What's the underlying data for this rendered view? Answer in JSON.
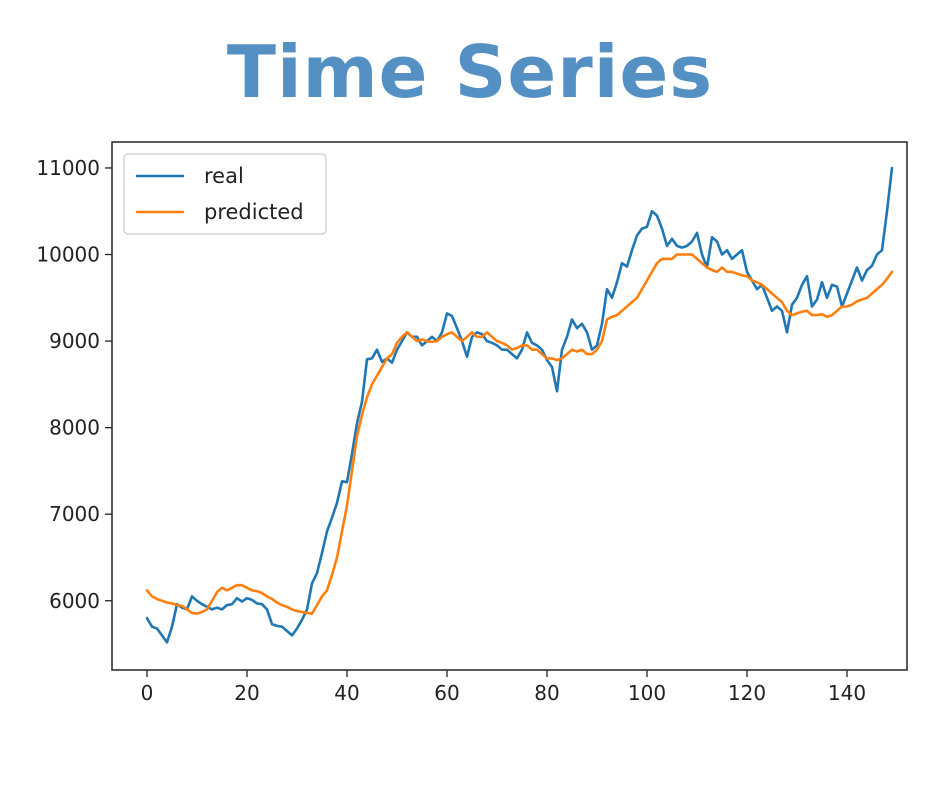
{
  "page": {
    "title": "Time Series"
  },
  "chart_data": {
    "type": "line",
    "title": "",
    "xlabel": "",
    "ylabel": "",
    "xlim": [
      -7,
      152
    ],
    "ylim": [
      5200,
      11300
    ],
    "xticks": [
      0,
      20,
      40,
      60,
      80,
      100,
      120,
      140
    ],
    "yticks": [
      6000,
      7000,
      8000,
      9000,
      10000,
      11000
    ],
    "grid": false,
    "legend_position": "top-left",
    "series": [
      {
        "name": "real",
        "color": "#1f77b4",
        "x": [
          0,
          1,
          2,
          3,
          4,
          5,
          6,
          7,
          8,
          9,
          10,
          11,
          12,
          13,
          14,
          15,
          16,
          17,
          18,
          19,
          20,
          21,
          22,
          23,
          24,
          25,
          26,
          27,
          28,
          29,
          30,
          31,
          32,
          33,
          34,
          35,
          36,
          37,
          38,
          39,
          40,
          41,
          42,
          43,
          44,
          45,
          46,
          47,
          48,
          49,
          50,
          51,
          52,
          53,
          54,
          55,
          56,
          57,
          58,
          59,
          60,
          61,
          62,
          63,
          64,
          65,
          66,
          67,
          68,
          69,
          70,
          71,
          72,
          73,
          74,
          75,
          76,
          77,
          78,
          79,
          80,
          81,
          82,
          83,
          84,
          85,
          86,
          87,
          88,
          89,
          90,
          91,
          92,
          93,
          94,
          95,
          96,
          97,
          98,
          99,
          100,
          101,
          102,
          103,
          104,
          105,
          106,
          107,
          108,
          109,
          110,
          111,
          112,
          113,
          114,
          115,
          116,
          117,
          118,
          119,
          120,
          121,
          122,
          123,
          124,
          125,
          126,
          127,
          128,
          129,
          130,
          131,
          132,
          133,
          134,
          135,
          136,
          137,
          138,
          139,
          140,
          141,
          142,
          143,
          144,
          145,
          146,
          147,
          148,
          149
        ],
        "values": [
          5800,
          5700,
          5680,
          5600,
          5520,
          5700,
          5960,
          5920,
          5900,
          6050,
          6000,
          5960,
          5930,
          5900,
          5920,
          5900,
          5950,
          5960,
          6030,
          5990,
          6030,
          6010,
          5970,
          5960,
          5900,
          5730,
          5710,
          5700,
          5650,
          5600,
          5680,
          5780,
          5900,
          6200,
          6320,
          6550,
          6800,
          6960,
          7130,
          7380,
          7370,
          7700,
          8050,
          8300,
          8790,
          8800,
          8900,
          8760,
          8800,
          8750,
          8900,
          9000,
          9100,
          9050,
          9050,
          8950,
          9000,
          9050,
          9000,
          9100,
          9320,
          9290,
          9150,
          9000,
          8820,
          9050,
          9100,
          9080,
          9000,
          8980,
          8950,
          8900,
          8900,
          8850,
          8800,
          8900,
          9100,
          8980,
          8950,
          8900,
          8780,
          8700,
          8420,
          8900,
          9050,
          9250,
          9150,
          9200,
          9100,
          8900,
          8950,
          9200,
          9600,
          9500,
          9680,
          9900,
          9860,
          10050,
          10220,
          10300,
          10320,
          10500,
          10450,
          10300,
          10100,
          10180,
          10100,
          10080,
          10100,
          10150,
          10250,
          10000,
          9850,
          10200,
          10150,
          10000,
          10050,
          9950,
          10000,
          10050,
          9800,
          9700,
          9600,
          9650,
          9500,
          9350,
          9400,
          9350,
          9100,
          9420,
          9500,
          9650,
          9750,
          9400,
          9480,
          9680,
          9500,
          9650,
          9630,
          9400,
          9550,
          9700,
          9850,
          9700,
          9820,
          9870,
          10000,
          10050,
          10500,
          11000
        ]
      },
      {
        "name": "predicted",
        "color": "#ff7f0e",
        "x": [
          0,
          1,
          2,
          3,
          4,
          5,
          6,
          7,
          8,
          9,
          10,
          11,
          12,
          13,
          14,
          15,
          16,
          17,
          18,
          19,
          20,
          21,
          22,
          23,
          24,
          25,
          26,
          27,
          28,
          29,
          30,
          31,
          32,
          33,
          34,
          35,
          36,
          37,
          38,
          39,
          40,
          41,
          42,
          43,
          44,
          45,
          46,
          47,
          48,
          49,
          50,
          51,
          52,
          53,
          54,
          55,
          56,
          57,
          58,
          59,
          60,
          61,
          62,
          63,
          64,
          65,
          66,
          67,
          68,
          69,
          70,
          71,
          72,
          73,
          74,
          75,
          76,
          77,
          78,
          79,
          80,
          81,
          82,
          83,
          84,
          85,
          86,
          87,
          88,
          89,
          90,
          91,
          92,
          93,
          94,
          95,
          96,
          97,
          98,
          99,
          100,
          101,
          102,
          103,
          104,
          105,
          106,
          107,
          108,
          109,
          110,
          111,
          112,
          113,
          114,
          115,
          116,
          117,
          118,
          119,
          120,
          121,
          122,
          123,
          124,
          125,
          126,
          127,
          128,
          129,
          130,
          131,
          132,
          133,
          134,
          135,
          136,
          137,
          138,
          139,
          140,
          141,
          142,
          143,
          144,
          145,
          146,
          147,
          148,
          149
        ],
        "values": [
          6120,
          6050,
          6020,
          6000,
          5980,
          5970,
          5950,
          5940,
          5900,
          5860,
          5850,
          5870,
          5900,
          6000,
          6100,
          6150,
          6120,
          6150,
          6180,
          6180,
          6150,
          6120,
          6110,
          6090,
          6050,
          6020,
          5980,
          5950,
          5930,
          5900,
          5880,
          5870,
          5860,
          5850,
          5950,
          6050,
          6120,
          6300,
          6500,
          6800,
          7100,
          7500,
          7900,
          8150,
          8350,
          8500,
          8600,
          8700,
          8800,
          8850,
          8980,
          9050,
          9100,
          9050,
          9000,
          9020,
          9000,
          8990,
          9000,
          9050,
          9080,
          9100,
          9050,
          9000,
          9050,
          9100,
          9050,
          9050,
          9100,
          9050,
          9000,
          8980,
          8950,
          8900,
          8920,
          8950,
          8950,
          8900,
          8900,
          8850,
          8800,
          8800,
          8780,
          8800,
          8850,
          8900,
          8880,
          8900,
          8850,
          8850,
          8900,
          9000,
          9250,
          9280,
          9300,
          9350,
          9400,
          9450,
          9500,
          9600,
          9700,
          9800,
          9900,
          9950,
          9950,
          9950,
          10000,
          10000,
          10000,
          10000,
          9950,
          9900,
          9850,
          9820,
          9800,
          9850,
          9800,
          9800,
          9780,
          9760,
          9750,
          9700,
          9680,
          9650,
          9600,
          9550,
          9500,
          9450,
          9350,
          9300,
          9320,
          9340,
          9350,
          9300,
          9300,
          9310,
          9280,
          9300,
          9350,
          9400,
          9400,
          9420,
          9460,
          9480,
          9500,
          9550,
          9600,
          9650,
          9720,
          9800
        ]
      }
    ]
  }
}
